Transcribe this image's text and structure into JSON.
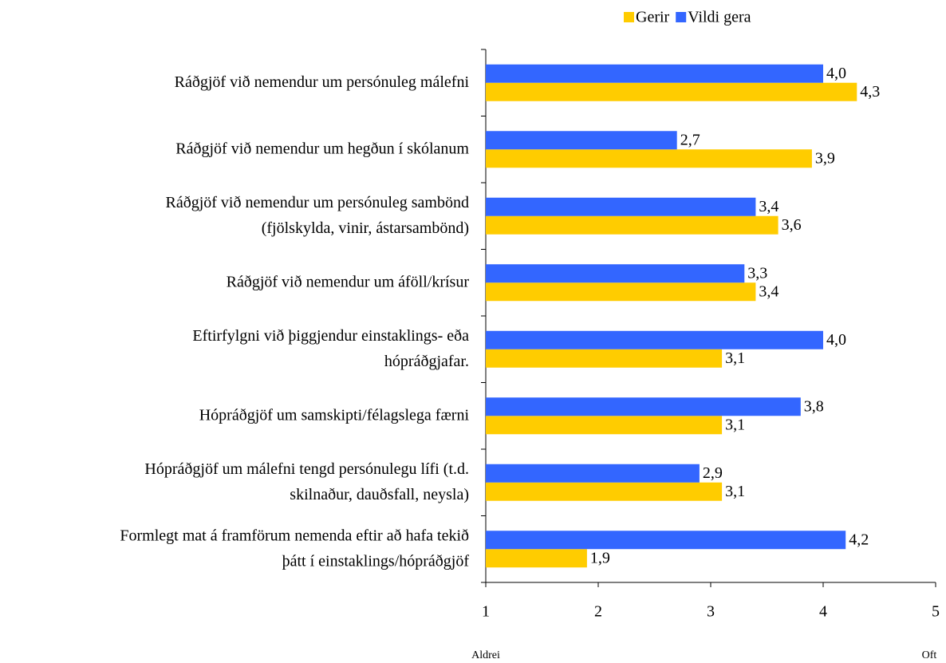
{
  "chart_data": {
    "type": "barh",
    "categories": [
      [
        "Ráðgjöf við nemendur um persónuleg málefni"
      ],
      [
        "Ráðgjöf við nemendur um hegðun í skólanum"
      ],
      [
        "Ráðgjöf við nemendur um persónuleg sambönd",
        "(fjölskylda, vinir, ástarsambönd)"
      ],
      [
        "Ráðgjöf við nemendur um áföll/krísur"
      ],
      [
        "Eftirfylgni við þiggjendur einstaklings- eða",
        "hópráðgjafar."
      ],
      [
        "Hópráðgjöf um samskipti/félagslega færni"
      ],
      [
        "Hópráðgjöf um málefni tengd persónulegu lífi (t.d.",
        "skilnaður, dauðsfall, neysla)"
      ],
      [
        "Formlegt mat á framförum nemenda eftir að hafa tekið",
        "þátt í einstaklings/hópráðgjöf"
      ]
    ],
    "series": [
      {
        "name": "Gerir",
        "color": "#FFCC00",
        "values": [
          4.3,
          3.9,
          3.6,
          3.4,
          3.1,
          3.1,
          3.1,
          1.9
        ],
        "value_labels": [
          "4,3",
          "3,9",
          "3,6",
          "3,4",
          "3,1",
          "3,1",
          "3,1",
          "1,9"
        ]
      },
      {
        "name": "Vildi gera",
        "color": "#3366FF",
        "values": [
          4.0,
          2.7,
          3.4,
          3.3,
          4.0,
          3.8,
          2.9,
          4.2
        ],
        "value_labels": [
          "4,0",
          "2,7",
          "3,4",
          "3,3",
          "4,0",
          "3,8",
          "2,9",
          "4,2"
        ]
      }
    ],
    "xlim": [
      1,
      5
    ],
    "xticks": [
      1,
      2,
      3,
      4,
      5
    ],
    "annotations": [
      "Aldrei",
      "Oft"
    ],
    "legend": "top"
  }
}
